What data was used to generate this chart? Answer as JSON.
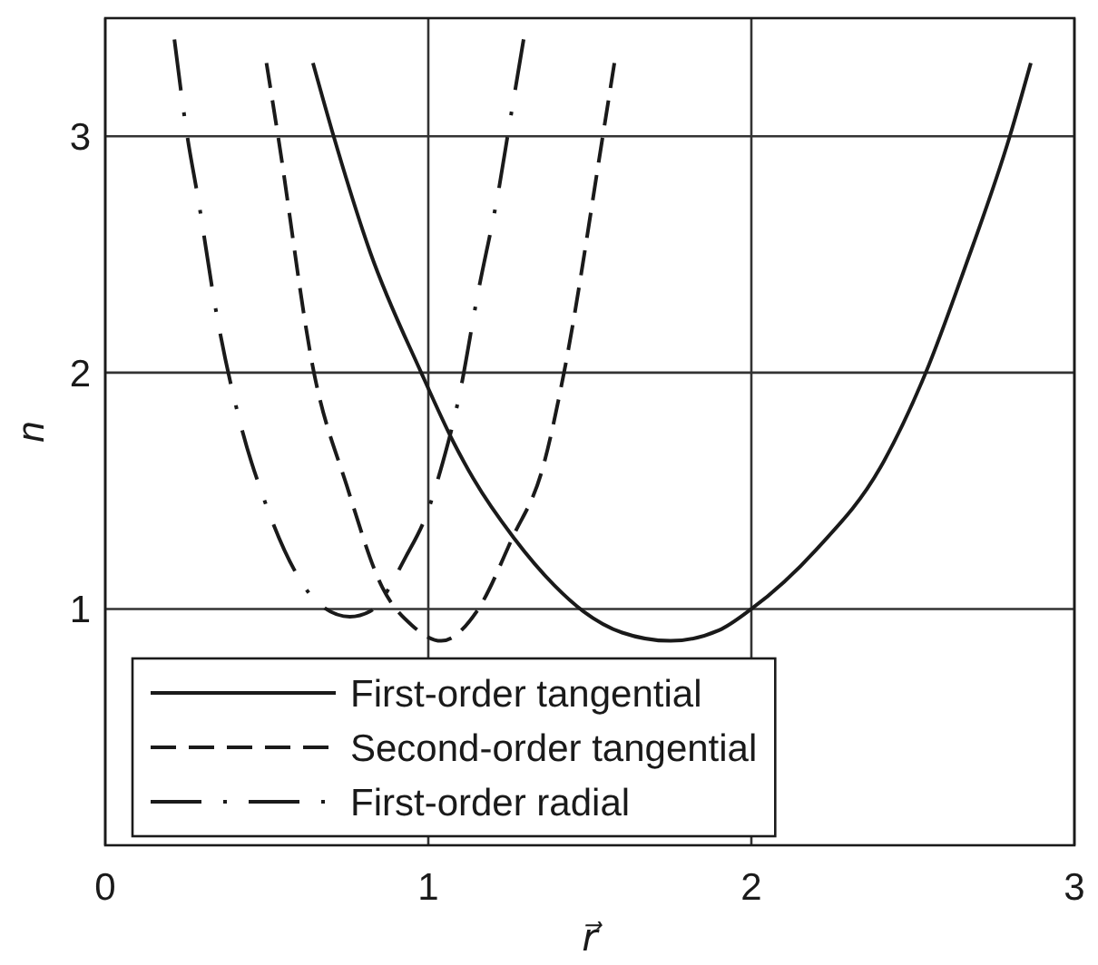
{
  "chart_data": {
    "type": "line",
    "xlabel": "r⃗",
    "ylabel": "n",
    "xlim": [
      0,
      3
    ],
    "ylim": [
      0,
      3.5
    ],
    "xticks": [
      0,
      1,
      2,
      3
    ],
    "yticks": [
      1,
      2,
      3
    ],
    "grid": true,
    "legend": "bottom left",
    "series": [
      {
        "name": "First-order tangential",
        "color": "#1a1a1a",
        "line_style": "solid",
        "x": [
          0.643,
          0.707,
          0.82,
          0.978,
          1.08,
          1.14,
          1.265,
          1.39,
          1.48,
          1.6,
          1.75,
          1.9,
          2.0,
          2.2,
          2.4,
          2.54,
          2.66,
          2.8,
          2.865
        ],
        "values": [
          3.31,
          3.0,
          2.51,
          2.0,
          1.7,
          1.55,
          1.3,
          1.1,
          0.99,
          0.9,
          0.865,
          0.91,
          1.0,
          1.25,
          1.6,
          2.0,
          2.44,
          3.0,
          3.31
        ]
      },
      {
        "name": "Second-order tangential",
        "color": "#1a1a1a",
        "line_style": "dashed",
        "x": [
          0.499,
          0.535,
          0.646,
          0.748,
          0.858,
          0.95,
          1.04,
          1.15,
          1.26,
          1.355,
          1.42,
          1.54,
          1.576
        ],
        "values": [
          3.31,
          3.0,
          2.0,
          1.52,
          1.09,
          0.93,
          0.865,
          0.99,
          1.3,
          1.6,
          2.0,
          3.0,
          3.31
        ]
      },
      {
        "name": "First-order radial",
        "color": "#1a1a1a",
        "line_style": "dashdot",
        "x": [
          0.214,
          0.254,
          0.287,
          0.343,
          0.425,
          0.49,
          0.6,
          0.655,
          0.757,
          0.82,
          0.93,
          1.0,
          1.03,
          1.1,
          1.15,
          1.22,
          1.25,
          1.295
        ],
        "values": [
          3.41,
          3.0,
          2.74,
          2.26,
          1.75,
          1.47,
          1.13,
          1.03,
          0.967,
          0.99,
          1.22,
          1.42,
          1.55,
          1.93,
          2.31,
          2.79,
          3.04,
          3.41
        ]
      }
    ]
  }
}
